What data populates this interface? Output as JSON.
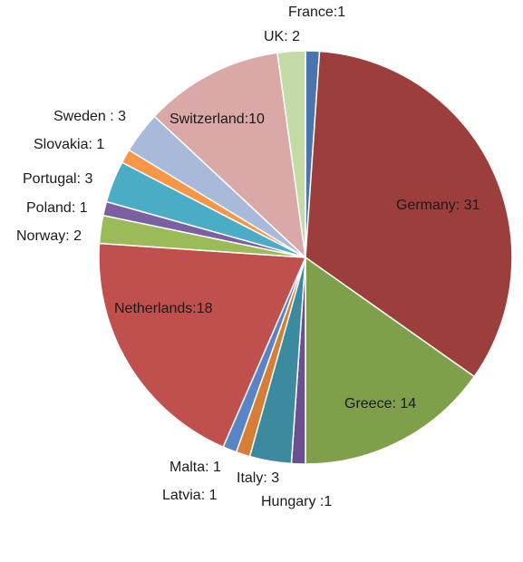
{
  "chart_data": {
    "type": "pie",
    "title": "",
    "slices": [
      {
        "category": "France",
        "value": 1,
        "label": "France:1",
        "color": "#4a74ad"
      },
      {
        "category": "Germany",
        "value": 31,
        "label": "Germany: 31",
        "color": "#9c3e3c"
      },
      {
        "category": "Greece",
        "value": 14,
        "label": "Greece: 14",
        "color": "#7f9f4a"
      },
      {
        "category": "Hungary",
        "value": 1,
        "label": "Hungary :1",
        "color": "#6b4f8f"
      },
      {
        "category": "Italy",
        "value": 3,
        "label": "Italy: 3",
        "color": "#3c8aa0"
      },
      {
        "category": "Latvia",
        "value": 1,
        "label": "Latvia: 1",
        "color": "#d67e35"
      },
      {
        "category": "Malta",
        "value": 1,
        "label": "Malta: 1",
        "color": "#5b84c4"
      },
      {
        "category": "Netherlands",
        "value": 18,
        "label": "Netherlands:18",
        "color": "#c0504d"
      },
      {
        "category": "Norway",
        "value": 2,
        "label": "Norway: 2",
        "color": "#9bbb59"
      },
      {
        "category": "Poland",
        "value": 1,
        "label": "Poland: 1",
        "color": "#7b5fa0"
      },
      {
        "category": "Portugal",
        "value": 3,
        "label": "Portugal: 3",
        "color": "#4bacc6"
      },
      {
        "category": "Slovakia",
        "value": 1,
        "label": "Slovakia: 1",
        "color": "#f79646"
      },
      {
        "category": "Sweden",
        "value": 3,
        "label": "Sweden : 3",
        "color": "#a9b9d9"
      },
      {
        "category": "Switzerland",
        "value": 10,
        "label": "Switzerland:10",
        "color": "#d9a8a7"
      },
      {
        "category": "UK",
        "value": 2,
        "label": "UK: 2",
        "color": "#c5dba6"
      }
    ],
    "start": "12 o'clock",
    "direction": "clockwise",
    "legend": "none"
  }
}
